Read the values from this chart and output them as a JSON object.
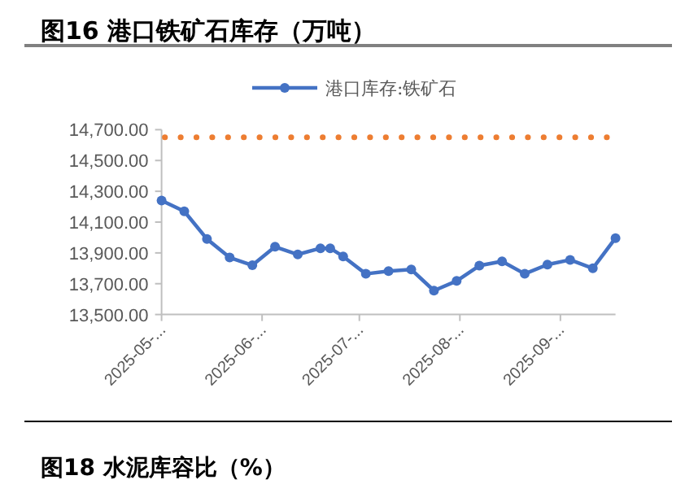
{
  "chart_data": {
    "type": "line",
    "title": "图16 港口铁矿石库存（万吨）",
    "annotations": [
      "图18 水泥库容比（%）"
    ],
    "x": [
      "2025-05-16",
      "2025-05-23",
      "2025-05-30",
      "2025-06-06",
      "2025-06-13",
      "2025-06-20",
      "2025-06-27",
      "2025-07-04",
      "2025-07-07",
      "2025-07-11",
      "2025-07-18",
      "2025-07-25",
      "2025-08-01",
      "2025-08-08",
      "2025-08-15",
      "2025-08-22",
      "2025-08-29",
      "2025-09-05",
      "2025-09-12",
      "2025-09-19",
      "2025-09-26",
      "2025-10-03"
    ],
    "series": [
      {
        "name": "港口库存:铁矿石",
        "color": "#4472c4",
        "values": [
          14240,
          14170,
          13990,
          13870,
          13820,
          13940,
          13890,
          13930,
          13930,
          13877,
          13764,
          13782,
          13792,
          13655,
          13718,
          13817,
          13845,
          13764,
          13824,
          13855,
          13800,
          13996
        ]
      }
    ],
    "ref_lines": [
      {
        "axis": "y",
        "value": 14650,
        "color": "#ed7d31",
        "line_style": "dotted"
      }
    ],
    "xlim": [
      "2025-05-16",
      "2025-10-03"
    ],
    "xticks": [
      {
        "value": "2025-05-16",
        "label": "2025-05-..."
      },
      {
        "value": "2025-06-16",
        "label": "2025-06-..."
      },
      {
        "value": "2025-07-16",
        "label": "2025-07-..."
      },
      {
        "value": "2025-08-16",
        "label": "2025-08-..."
      },
      {
        "value": "2025-09-16",
        "label": "2025-09-..."
      }
    ],
    "ylim": [
      13500,
      14700
    ],
    "yticks": [
      {
        "value": 13500,
        "label": "13,500.00"
      },
      {
        "value": 13700,
        "label": "13,700.00"
      },
      {
        "value": 13900,
        "label": "13,900.00"
      },
      {
        "value": 14100,
        "label": "14,100.00"
      },
      {
        "value": 14300,
        "label": "14,300.00"
      },
      {
        "value": 14500,
        "label": "14,500.00"
      },
      {
        "value": 14700,
        "label": "14,700.00"
      }
    ],
    "grid": false,
    "legend": "top",
    "marker": "circle",
    "line_style": "solid"
  }
}
